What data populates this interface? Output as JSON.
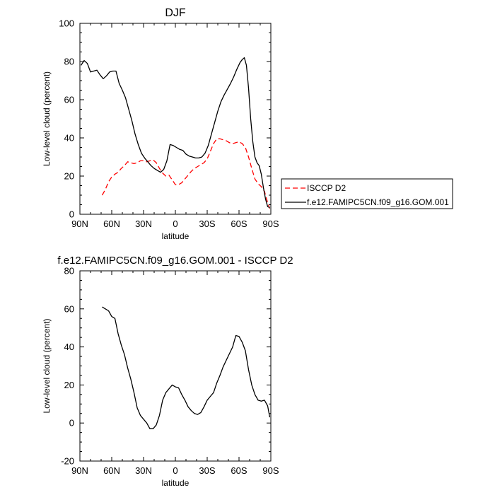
{
  "chart_data": [
    {
      "type": "line",
      "title": "DJF",
      "xlabel": "latitude",
      "ylabel": "Low-level cloud (percent)",
      "xlim": [
        -90,
        90
      ],
      "ylim": [
        0,
        100
      ],
      "x_ticks": [
        -90,
        -60,
        -30,
        0,
        30,
        60,
        90
      ],
      "x_tick_labels": [
        "90N",
        "60N",
        "30N",
        "0",
        "30S",
        "60S",
        "90S"
      ],
      "y_ticks": [
        0,
        20,
        40,
        60,
        80,
        100
      ],
      "y_tick_labels": [
        "0",
        "20",
        "40",
        "60",
        "80",
        "100"
      ],
      "legend_position": "right",
      "series": [
        {
          "name": "ISCCP D2",
          "color": "#ff0000",
          "dash": "dashed",
          "x": [
            -69,
            -66,
            -63,
            -60,
            -57,
            -54,
            -51,
            -48,
            -45,
            -42,
            -39,
            -36,
            -33,
            -30,
            -27,
            -24,
            -21,
            -18,
            -15,
            -12,
            -9,
            -6,
            -3,
            0,
            3,
            6,
            9,
            12,
            15,
            18,
            21,
            24,
            27,
            30,
            33,
            36,
            39,
            42,
            45,
            48,
            51,
            54,
            57,
            60,
            63,
            66,
            69,
            72,
            75,
            78,
            81,
            84,
            87,
            89
          ],
          "y": [
            10,
            13,
            17,
            19.5,
            21,
            22,
            24,
            25.5,
            27.5,
            27,
            26.5,
            27,
            28,
            28,
            27.5,
            28,
            28.5,
            27,
            24,
            21.5,
            20,
            20.5,
            18,
            15.5,
            15.5,
            16.5,
            18.5,
            20.5,
            22.5,
            24,
            25,
            26,
            27,
            29,
            33,
            37,
            39.5,
            39.5,
            39,
            38.5,
            37.5,
            37,
            37.5,
            38,
            37,
            35,
            30,
            24,
            18.5,
            16,
            14.5,
            12,
            6,
            3
          ]
        },
        {
          "name": "f.e12.FAMIPC5CN.f09_g16.GOM.001",
          "color": "#000000",
          "dash": "solid",
          "x": [
            -89,
            -86,
            -83,
            -80,
            -77,
            -74,
            -71,
            -68,
            -65,
            -62,
            -59,
            -56,
            -53,
            -50,
            -47,
            -44,
            -41,
            -38,
            -35,
            -32,
            -29,
            -26,
            -23,
            -20,
            -17,
            -14,
            -11,
            -8,
            -5,
            -2,
            1,
            4,
            7,
            10,
            13,
            16,
            19,
            22,
            25,
            28,
            31,
            34,
            37,
            40,
            43,
            46,
            49,
            52,
            55,
            58,
            61,
            63,
            65,
            67,
            69,
            71,
            73,
            75,
            77,
            79,
            81,
            83,
            85,
            87,
            89
          ],
          "y": [
            78,
            80.5,
            79,
            74.5,
            75,
            75.5,
            73,
            71,
            72.5,
            74.5,
            75,
            75,
            68.5,
            65,
            61,
            55,
            49,
            42,
            36.5,
            32,
            29.5,
            27.5,
            25.5,
            24,
            23,
            22,
            23.5,
            28,
            36.5,
            36,
            35,
            34,
            33.5,
            31.5,
            30.5,
            30,
            29.5,
            29.5,
            30,
            32,
            36,
            42,
            48,
            54,
            59,
            62.5,
            65.5,
            68.5,
            72,
            76,
            79.5,
            81,
            82,
            78,
            66,
            50,
            38,
            30,
            27,
            25.5,
            21,
            14,
            8,
            4,
            3.5
          ]
        }
      ]
    },
    {
      "type": "line",
      "title": "f.e12.FAMIPC5CN.f09_g16.GOM.001 - ISCCP D2",
      "xlabel": "latitude",
      "ylabel": "Low-level cloud (percent)",
      "xlim": [
        -90,
        90
      ],
      "ylim": [
        -20,
        80
      ],
      "x_ticks": [
        -90,
        -60,
        -30,
        0,
        30,
        60,
        90
      ],
      "x_tick_labels": [
        "90N",
        "60N",
        "30N",
        "0",
        "30S",
        "60S",
        "90S"
      ],
      "y_ticks": [
        -20,
        0,
        20,
        40,
        60,
        80
      ],
      "y_tick_labels": [
        "-20",
        "0",
        "20",
        "40",
        "60",
        "80"
      ],
      "series": [
        {
          "color": "#000000",
          "dash": "solid",
          "x": [
            -69,
            -66,
            -63,
            -60,
            -57,
            -54,
            -51,
            -48,
            -45,
            -42,
            -39,
            -36,
            -33,
            -30,
            -27,
            -24,
            -21,
            -18,
            -15,
            -12,
            -9,
            -6,
            -3,
            0,
            3,
            6,
            9,
            12,
            15,
            18,
            21,
            24,
            27,
            30,
            33,
            36,
            39,
            42,
            45,
            48,
            51,
            54,
            57,
            60,
            63,
            66,
            69,
            72,
            75,
            78,
            81,
            84,
            87,
            89
          ],
          "y": [
            61,
            60,
            59,
            56,
            55,
            47,
            41,
            36,
            29,
            23,
            16,
            8,
            4,
            2,
            0,
            -3,
            -3,
            -1,
            4,
            12,
            16,
            18,
            20,
            19,
            18.5,
            15,
            12,
            8.5,
            6.5,
            5,
            4.5,
            5.5,
            8.5,
            12,
            14,
            16,
            21,
            25,
            29.5,
            33,
            36.5,
            40,
            46,
            45.5,
            42.5,
            38,
            28,
            20,
            15,
            12,
            11.5,
            12,
            9,
            3
          ]
        }
      ]
    }
  ]
}
